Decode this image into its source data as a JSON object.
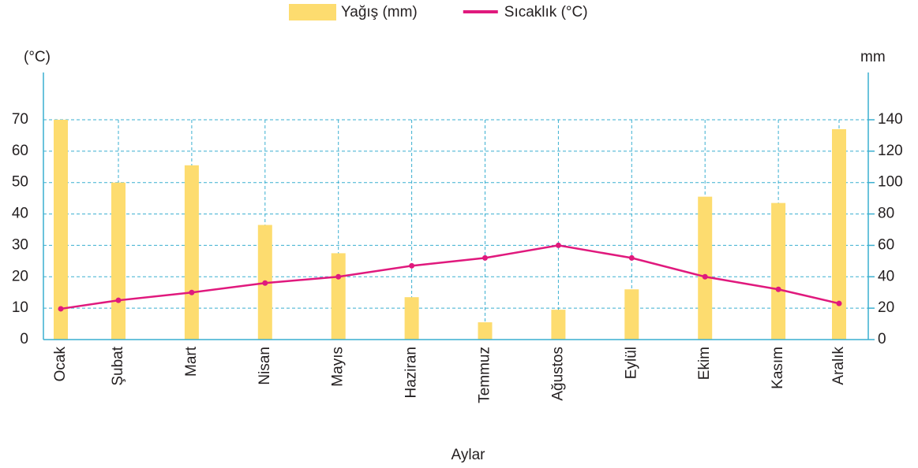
{
  "chart_data": {
    "type": "bar",
    "x_label": "Aylar",
    "y_label": "(°C)",
    "y2_label": "mm",
    "categories": [
      "Ocak",
      "Şubat",
      "Mart",
      "Nisan",
      "Mayıs",
      "Haziran",
      "Temmuz",
      "Ağustos",
      "Eylül",
      "Ekim",
      "Kasım",
      "Aralık"
    ],
    "series": [
      {
        "name": "Yağış (mm)",
        "type": "bar",
        "axis": "y2",
        "color": "#fddc6f",
        "values": [
          140,
          100,
          111,
          73,
          55,
          27,
          11,
          19,
          32,
          91,
          87,
          134
        ]
      },
      {
        "name": "Sıcaklık (°C)",
        "type": "line",
        "color": "#e0197d",
        "values": [
          9.8,
          12.5,
          15,
          18,
          20,
          23.5,
          26,
          30,
          26,
          20,
          16,
          11.5
        ]
      }
    ],
    "ylim": [
      0,
      70
    ],
    "yticks": [
      0,
      10,
      20,
      30,
      40,
      50,
      60,
      70
    ],
    "y2lim": [
      0,
      140
    ],
    "y2ticks": [
      0,
      20,
      40,
      60,
      80,
      100,
      120,
      140
    ],
    "grid": true,
    "legend": "top"
  }
}
